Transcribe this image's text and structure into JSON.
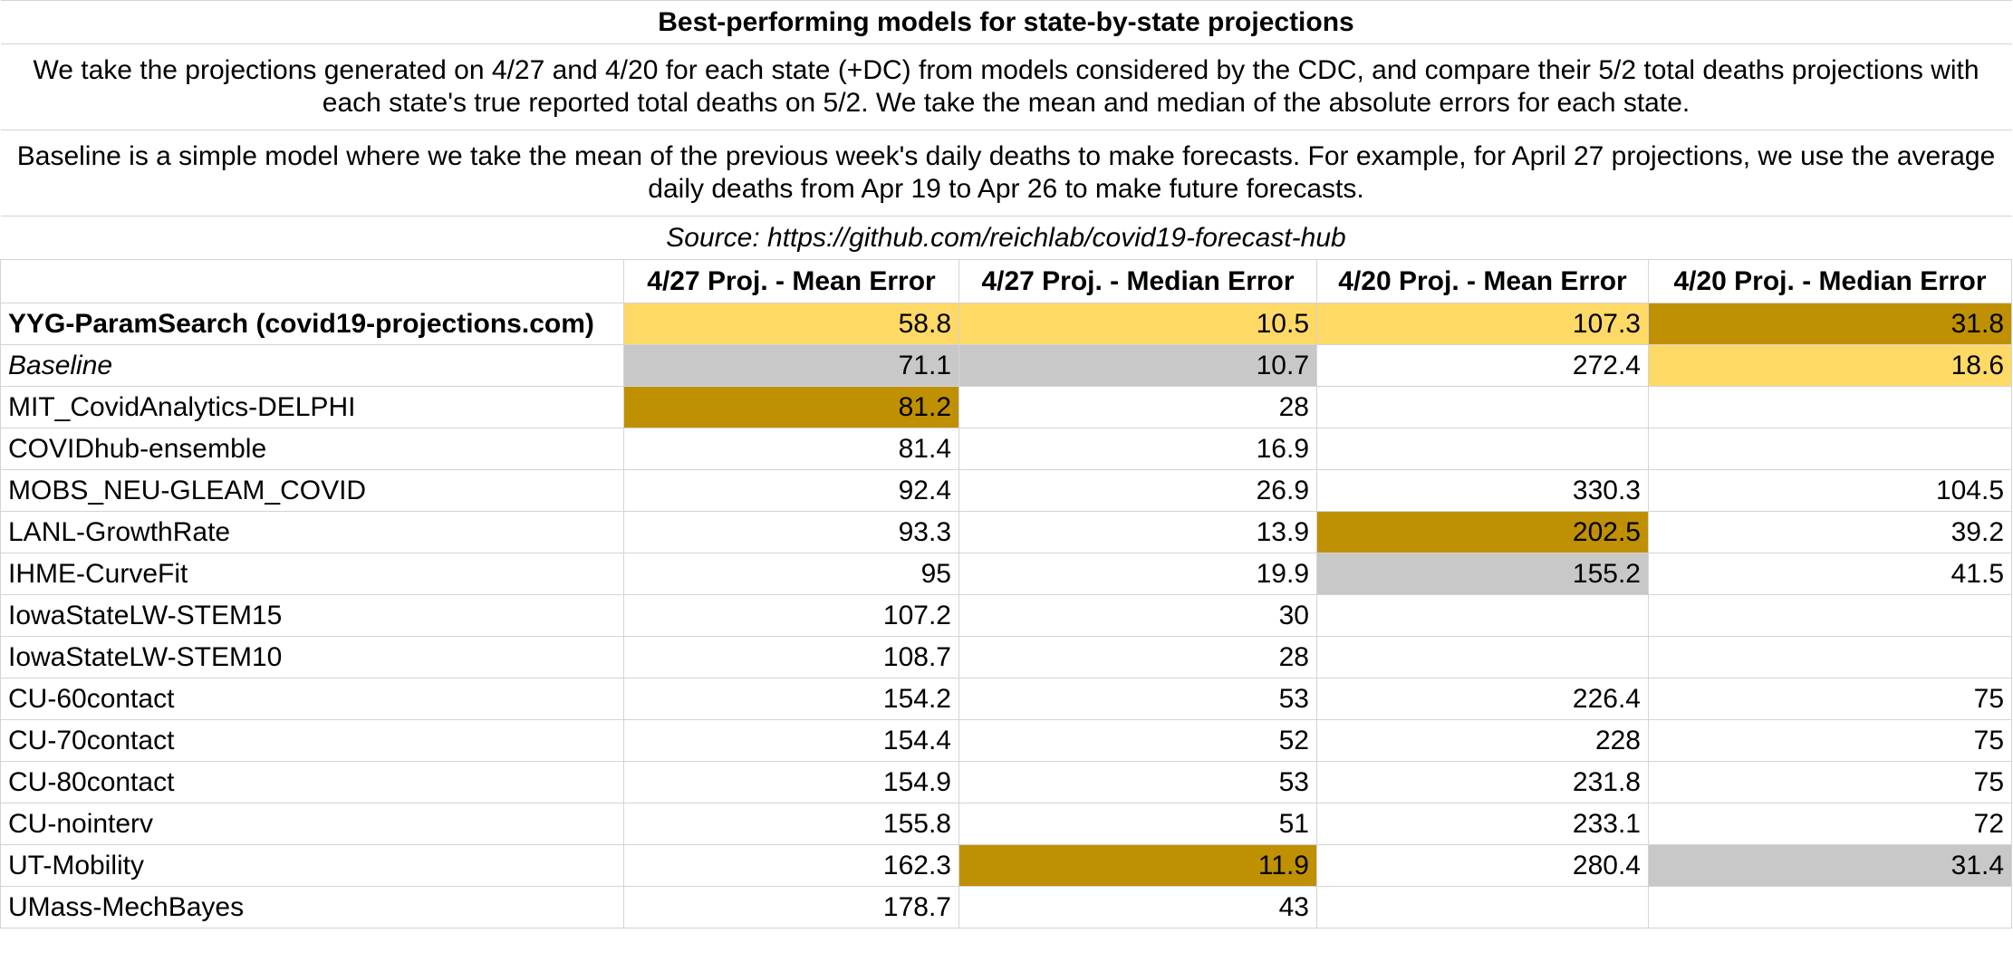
{
  "title": "Best-performing models for state-by-state projections",
  "description_1": "We take the projections generated on 4/27 and 4/20 for each state (+DC) from models considered by the CDC, and compare their 5/2 total deaths projections with each state's true reported total deaths on 5/2. We take the mean and median of the absolute errors for each state.",
  "description_2": "Baseline is a simple model where we take the mean of the previous week's daily deaths to make forecasts. For example, for April 27 projections, we use the average daily deaths from Apr 19 to Apr 26 to make future forecasts.",
  "source": "Source: https://github.com/reichlab/covid19-forecast-hub",
  "headers": [
    "",
    "4/27 Proj. - Mean Error",
    "4/27 Proj. - Median Error",
    "4/20 Proj. - Mean Error",
    "4/20 Proj. - Median Error"
  ],
  "highlight_colors": {
    "yellow": "#fed966",
    "gold": "#bf9001",
    "gray": "#c8c8c8"
  },
  "rows": [
    {
      "model": "YYG-ParamSearch (covid19-projections.com)",
      "style": "bold",
      "values": [
        "58.8",
        "10.5",
        "107.3",
        "31.8"
      ],
      "highlights": [
        "yellow",
        "yellow",
        "yellow",
        "gold"
      ]
    },
    {
      "model": "Baseline",
      "style": "italic",
      "values": [
        "71.1",
        "10.7",
        "272.4",
        "18.6"
      ],
      "highlights": [
        "gray",
        "gray",
        "",
        "yellow"
      ]
    },
    {
      "model": "MIT_CovidAnalytics-DELPHI",
      "style": "",
      "values": [
        "81.2",
        "28",
        "",
        ""
      ],
      "highlights": [
        "gold",
        "",
        "",
        ""
      ]
    },
    {
      "model": "COVIDhub-ensemble",
      "style": "",
      "values": [
        "81.4",
        "16.9",
        "",
        ""
      ],
      "highlights": [
        "",
        "",
        "",
        ""
      ]
    },
    {
      "model": "MOBS_NEU-GLEAM_COVID",
      "style": "",
      "values": [
        "92.4",
        "26.9",
        "330.3",
        "104.5"
      ],
      "highlights": [
        "",
        "",
        "",
        ""
      ]
    },
    {
      "model": "LANL-GrowthRate",
      "style": "",
      "values": [
        "93.3",
        "13.9",
        "202.5",
        "39.2"
      ],
      "highlights": [
        "",
        "",
        "gold",
        ""
      ]
    },
    {
      "model": "IHME-CurveFit",
      "style": "",
      "values": [
        "95",
        "19.9",
        "155.2",
        "41.5"
      ],
      "highlights": [
        "",
        "",
        "gray",
        ""
      ]
    },
    {
      "model": "IowaStateLW-STEM15",
      "style": "",
      "values": [
        "107.2",
        "30",
        "",
        ""
      ],
      "highlights": [
        "",
        "",
        "",
        ""
      ]
    },
    {
      "model": "IowaStateLW-STEM10",
      "style": "",
      "values": [
        "108.7",
        "28",
        "",
        ""
      ],
      "highlights": [
        "",
        "",
        "",
        ""
      ]
    },
    {
      "model": "CU-60contact",
      "style": "",
      "values": [
        "154.2",
        "53",
        "226.4",
        "75"
      ],
      "highlights": [
        "",
        "",
        "",
        ""
      ]
    },
    {
      "model": "CU-70contact",
      "style": "",
      "values": [
        "154.4",
        "52",
        "228",
        "75"
      ],
      "highlights": [
        "",
        "",
        "",
        ""
      ]
    },
    {
      "model": "CU-80contact",
      "style": "",
      "values": [
        "154.9",
        "53",
        "231.8",
        "75"
      ],
      "highlights": [
        "",
        "",
        "",
        ""
      ]
    },
    {
      "model": "CU-nointerv",
      "style": "",
      "values": [
        "155.8",
        "51",
        "233.1",
        "72"
      ],
      "highlights": [
        "",
        "",
        "",
        ""
      ]
    },
    {
      "model": "UT-Mobility",
      "style": "",
      "values": [
        "162.3",
        "11.9",
        "280.4",
        "31.4"
      ],
      "highlights": [
        "",
        "gold",
        "",
        "gray"
      ]
    },
    {
      "model": "UMass-MechBayes",
      "style": "",
      "values": [
        "178.7",
        "43",
        "",
        ""
      ],
      "highlights": [
        "",
        "",
        "",
        ""
      ]
    }
  ]
}
